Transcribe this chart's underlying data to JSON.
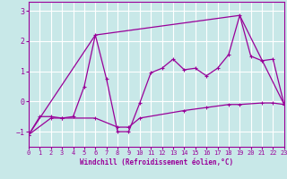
{
  "xlabel": "Windchill (Refroidissement éolien,°C)",
  "bg_color": "#c8e8e8",
  "line_color": "#990099",
  "grid_color": "#ffffff",
  "xlim": [
    0,
    23
  ],
  "ylim": [
    -1.5,
    3.3
  ],
  "yticks": [
    -1,
    0,
    1,
    2,
    3
  ],
  "xticks": [
    0,
    1,
    2,
    3,
    4,
    5,
    6,
    7,
    8,
    9,
    10,
    11,
    12,
    13,
    14,
    15,
    16,
    17,
    18,
    19,
    20,
    21,
    22,
    23
  ],
  "series_main": [
    [
      0,
      -1.1
    ],
    [
      1,
      -0.5
    ],
    [
      2,
      -0.5
    ],
    [
      3,
      -0.55
    ],
    [
      4,
      -0.5
    ],
    [
      5,
      0.5
    ],
    [
      6,
      2.2
    ],
    [
      7,
      0.75
    ],
    [
      8,
      -1.0
    ],
    [
      9,
      -1.0
    ],
    [
      10,
      -0.05
    ],
    [
      11,
      0.95
    ],
    [
      12,
      1.1
    ],
    [
      13,
      1.4
    ],
    [
      14,
      1.05
    ],
    [
      15,
      1.1
    ],
    [
      16,
      0.85
    ],
    [
      17,
      1.1
    ],
    [
      18,
      1.55
    ],
    [
      19,
      2.85
    ],
    [
      20,
      1.5
    ],
    [
      21,
      1.35
    ],
    [
      22,
      1.4
    ],
    [
      23,
      -0.1
    ]
  ],
  "series_triangle": [
    [
      0,
      -1.1
    ],
    [
      6,
      2.2
    ],
    [
      19,
      2.85
    ],
    [
      23,
      -0.1
    ]
  ],
  "series_baseline": [
    [
      0,
      -1.1
    ],
    [
      2,
      -0.55
    ],
    [
      3,
      -0.55
    ],
    [
      6,
      -0.55
    ],
    [
      8,
      -0.85
    ],
    [
      9,
      -0.85
    ],
    [
      10,
      -0.55
    ],
    [
      14,
      -0.3
    ],
    [
      16,
      -0.2
    ],
    [
      18,
      -0.1
    ],
    [
      19,
      -0.1
    ],
    [
      21,
      -0.05
    ],
    [
      22,
      -0.05
    ],
    [
      23,
      -0.1
    ]
  ]
}
